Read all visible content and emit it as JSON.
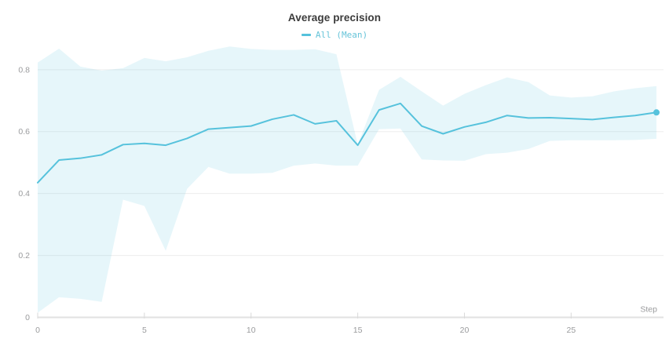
{
  "chart": {
    "title": "Average precision",
    "legend_label": "All (Mean)",
    "x_axis_label": "Step"
  },
  "chart_data": {
    "type": "line",
    "title": "Average precision",
    "subtitle": "",
    "xlabel": "Step",
    "ylabel": "",
    "legend": [
      {
        "label": "All (Mean)",
        "color": "#56c2dc",
        "position": "top-center"
      }
    ],
    "grid": "horizontal-only",
    "xlim": [
      0,
      29.33
    ],
    "ylim": [
      0,
      0.9
    ],
    "xticks": [
      0,
      5,
      10,
      15,
      20,
      25
    ],
    "yticks": [
      0,
      0.2,
      0.4,
      0.6,
      0.8
    ],
    "ytick_labels": [
      "0",
      "0.2",
      "0.4",
      "0.6",
      "0.8"
    ],
    "x": [
      0,
      1,
      2,
      3,
      4,
      5,
      6,
      7,
      8,
      9,
      10,
      11,
      12,
      13,
      14,
      15,
      16,
      17,
      18,
      19,
      20,
      21,
      22,
      23,
      24,
      25,
      26,
      27,
      28,
      29
    ],
    "series": [
      {
        "name": "All (Mean)",
        "values": [
          0.435,
          0.508,
          0.514,
          0.525,
          0.558,
          0.562,
          0.556,
          0.578,
          0.608,
          0.613,
          0.618,
          0.64,
          0.654,
          0.625,
          0.635,
          0.556,
          0.67,
          0.691,
          0.618,
          0.593,
          0.615,
          0.63,
          0.652,
          0.644,
          0.645,
          0.642,
          0.639,
          0.646,
          0.652,
          0.662
        ],
        "band_upper": [
          0.823,
          0.868,
          0.81,
          0.797,
          0.805,
          0.838,
          0.827,
          0.84,
          0.861,
          0.875,
          0.867,
          0.864,
          0.864,
          0.866,
          0.85,
          0.558,
          0.735,
          0.777,
          0.73,
          0.684,
          0.722,
          0.75,
          0.775,
          0.76,
          0.717,
          0.71,
          0.714,
          0.73,
          0.74,
          0.747
        ],
        "band_lower": [
          0.015,
          0.065,
          0.06,
          0.05,
          0.38,
          0.36,
          0.215,
          0.415,
          0.486,
          0.464,
          0.464,
          0.467,
          0.49,
          0.497,
          0.49,
          0.49,
          0.608,
          0.61,
          0.51,
          0.507,
          0.506,
          0.527,
          0.532,
          0.544,
          0.57,
          0.572,
          0.572,
          0.572,
          0.573,
          0.577
        ],
        "end_marker": true
      }
    ],
    "colors": {
      "line": "#56c2dc",
      "band_fill": "rgba(86,194,220,0.15)",
      "legend_text": "#67c4d9",
      "title_text": "#3b3b3b",
      "tick_label": "#9a9b9d",
      "axis_line": "#e2e2e2",
      "tick_mark": "#d9d9d9",
      "gridline": "#ededed",
      "background": "#ffffff"
    }
  }
}
